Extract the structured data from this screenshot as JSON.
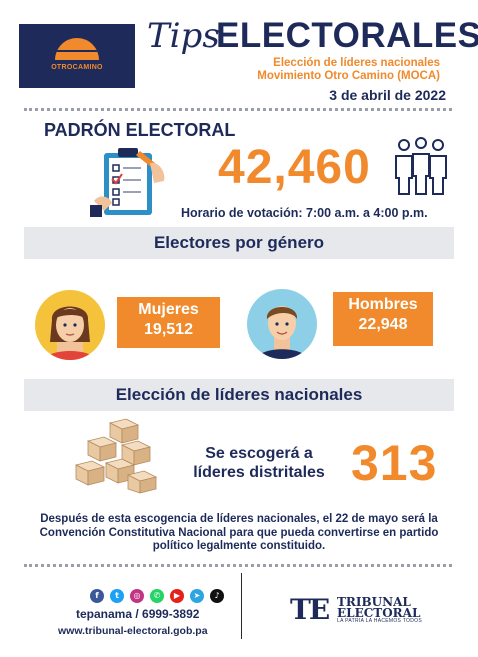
{
  "header": {
    "logo_text": "OTROCAMINO",
    "tips": "Tips",
    "title": "ELECTORALES",
    "subtitle_line1": "Elección de líderes nacionales",
    "subtitle_line2": "Movimiento Otro Camino (MOCA)",
    "date": "3 de abril de 2022"
  },
  "padron": {
    "title": "PADRÓN ELECTORAL",
    "total": "42,460",
    "horario": "Horario de votación: 7:00 a.m. a 4:00 p.m."
  },
  "genero": {
    "section_title": "Electores por género",
    "mujeres_label": "Mujeres",
    "mujeres_value": "19,512",
    "hombres_label": "Hombres",
    "hombres_value": "22,948"
  },
  "lideres": {
    "section_title": "Elección de líderes nacionales",
    "text_line1": "Se escogerá a",
    "text_line2": "líderes distritales",
    "count": "313",
    "note": "Después de esta escogencia de líderes nacionales, el 22 de mayo será la Convención Constitutiva Nacional para que pueda convertirse en partido político legalmente constituido."
  },
  "footer": {
    "social_icons": [
      "facebook-icon",
      "twitter-icon",
      "instagram-icon",
      "whatsapp-icon",
      "youtube-icon",
      "telegram-icon",
      "tiktok-icon"
    ],
    "handle": "tepanama / 6999-3892",
    "website": "www.tribunal-electoral.gob.pa",
    "te_mark": "TE",
    "te_name_line1": "TRIBUNAL",
    "te_name_line2": "ELECTORAL",
    "te_tagline": "LA PATRIA LA HACEMOS TODOS"
  },
  "colors": {
    "navy": "#1e2b5a",
    "orange": "#f08a2c",
    "bar_gray": "#e7e8ec"
  }
}
